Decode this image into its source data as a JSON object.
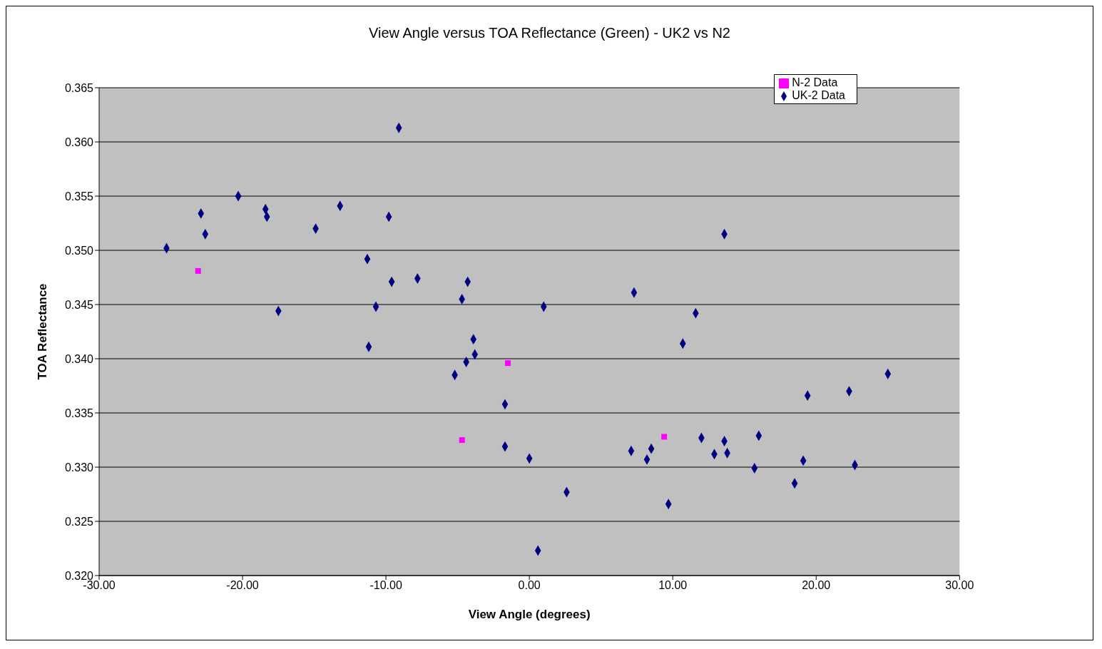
{
  "chart_data": {
    "type": "scatter",
    "title": "View Angle versus TOA Reflectance (Green) - UK2 vs N2",
    "xlabel": "View Angle (degrees)",
    "ylabel": "TOA Reflectance",
    "xlim": [
      -30,
      30
    ],
    "xticks": [
      {
        "value": -30,
        "label": "-30.00"
      },
      {
        "value": -20,
        "label": "-20.00"
      },
      {
        "value": -10,
        "label": "-10.00"
      },
      {
        "value": 0,
        "label": "0.00"
      },
      {
        "value": 10,
        "label": "10.00"
      },
      {
        "value": 20,
        "label": "20.00"
      },
      {
        "value": 30,
        "label": "30.00"
      }
    ],
    "ylim": [
      0.32,
      0.365
    ],
    "yticks": [
      {
        "value": 0.32,
        "label": "0.320"
      },
      {
        "value": 0.325,
        "label": "0.325"
      },
      {
        "value": 0.33,
        "label": "0.330"
      },
      {
        "value": 0.335,
        "label": "0.335"
      },
      {
        "value": 0.34,
        "label": "0.340"
      },
      {
        "value": 0.345,
        "label": "0.345"
      },
      {
        "value": 0.35,
        "label": "0.350"
      },
      {
        "value": 0.355,
        "label": "0.355"
      },
      {
        "value": 0.36,
        "label": "0.360"
      },
      {
        "value": 0.365,
        "label": "0.365"
      }
    ],
    "grid": "y",
    "legend": "top right",
    "series": [
      {
        "name": "UK-2 Data",
        "color": "#000080",
        "marker": "diamond",
        "x": [
          -25.3,
          -22.9,
          -22.6,
          -20.3,
          -18.4,
          -18.3,
          -17.5,
          -14.9,
          -13.2,
          -11.3,
          -11.2,
          -10.7,
          -9.8,
          -9.6,
          -9.1,
          -7.8,
          -5.2,
          -4.7,
          -4.4,
          -4.3,
          -3.9,
          -3.8,
          -1.7,
          -1.7,
          0.0,
          0.6,
          1.0,
          2.6,
          7.1,
          7.3,
          8.2,
          8.5,
          9.7,
          10.7,
          11.6,
          12.0,
          12.9,
          13.6,
          13.6,
          13.8,
          15.7,
          16.0,
          18.5,
          19.1,
          19.4,
          22.3,
          22.7,
          25.0
        ],
        "values": [
          0.3502,
          0.3534,
          0.3515,
          0.355,
          0.3538,
          0.3531,
          0.3444,
          0.352,
          0.3541,
          0.3492,
          0.3411,
          0.3448,
          0.3531,
          0.3471,
          0.3613,
          0.3474,
          0.3385,
          0.3455,
          0.3397,
          0.3471,
          0.3418,
          0.3404,
          0.3358,
          0.3319,
          0.3308,
          0.3223,
          0.3448,
          0.3277,
          0.3315,
          0.3461,
          0.3307,
          0.3317,
          0.3266,
          0.3414,
          0.3442,
          0.3327,
          0.3312,
          0.3515,
          0.3324,
          0.3313,
          0.3299,
          0.3329,
          0.3285,
          0.3306,
          0.3366,
          0.337,
          0.3302,
          0.3386
        ]
      },
      {
        "name": "N-2 Data",
        "color": "#ff00ff",
        "marker": "square",
        "x": [
          -23.1,
          -1.5,
          -4.7,
          9.4
        ],
        "values": [
          0.3481,
          0.3396,
          0.3325,
          0.3328
        ]
      }
    ]
  }
}
